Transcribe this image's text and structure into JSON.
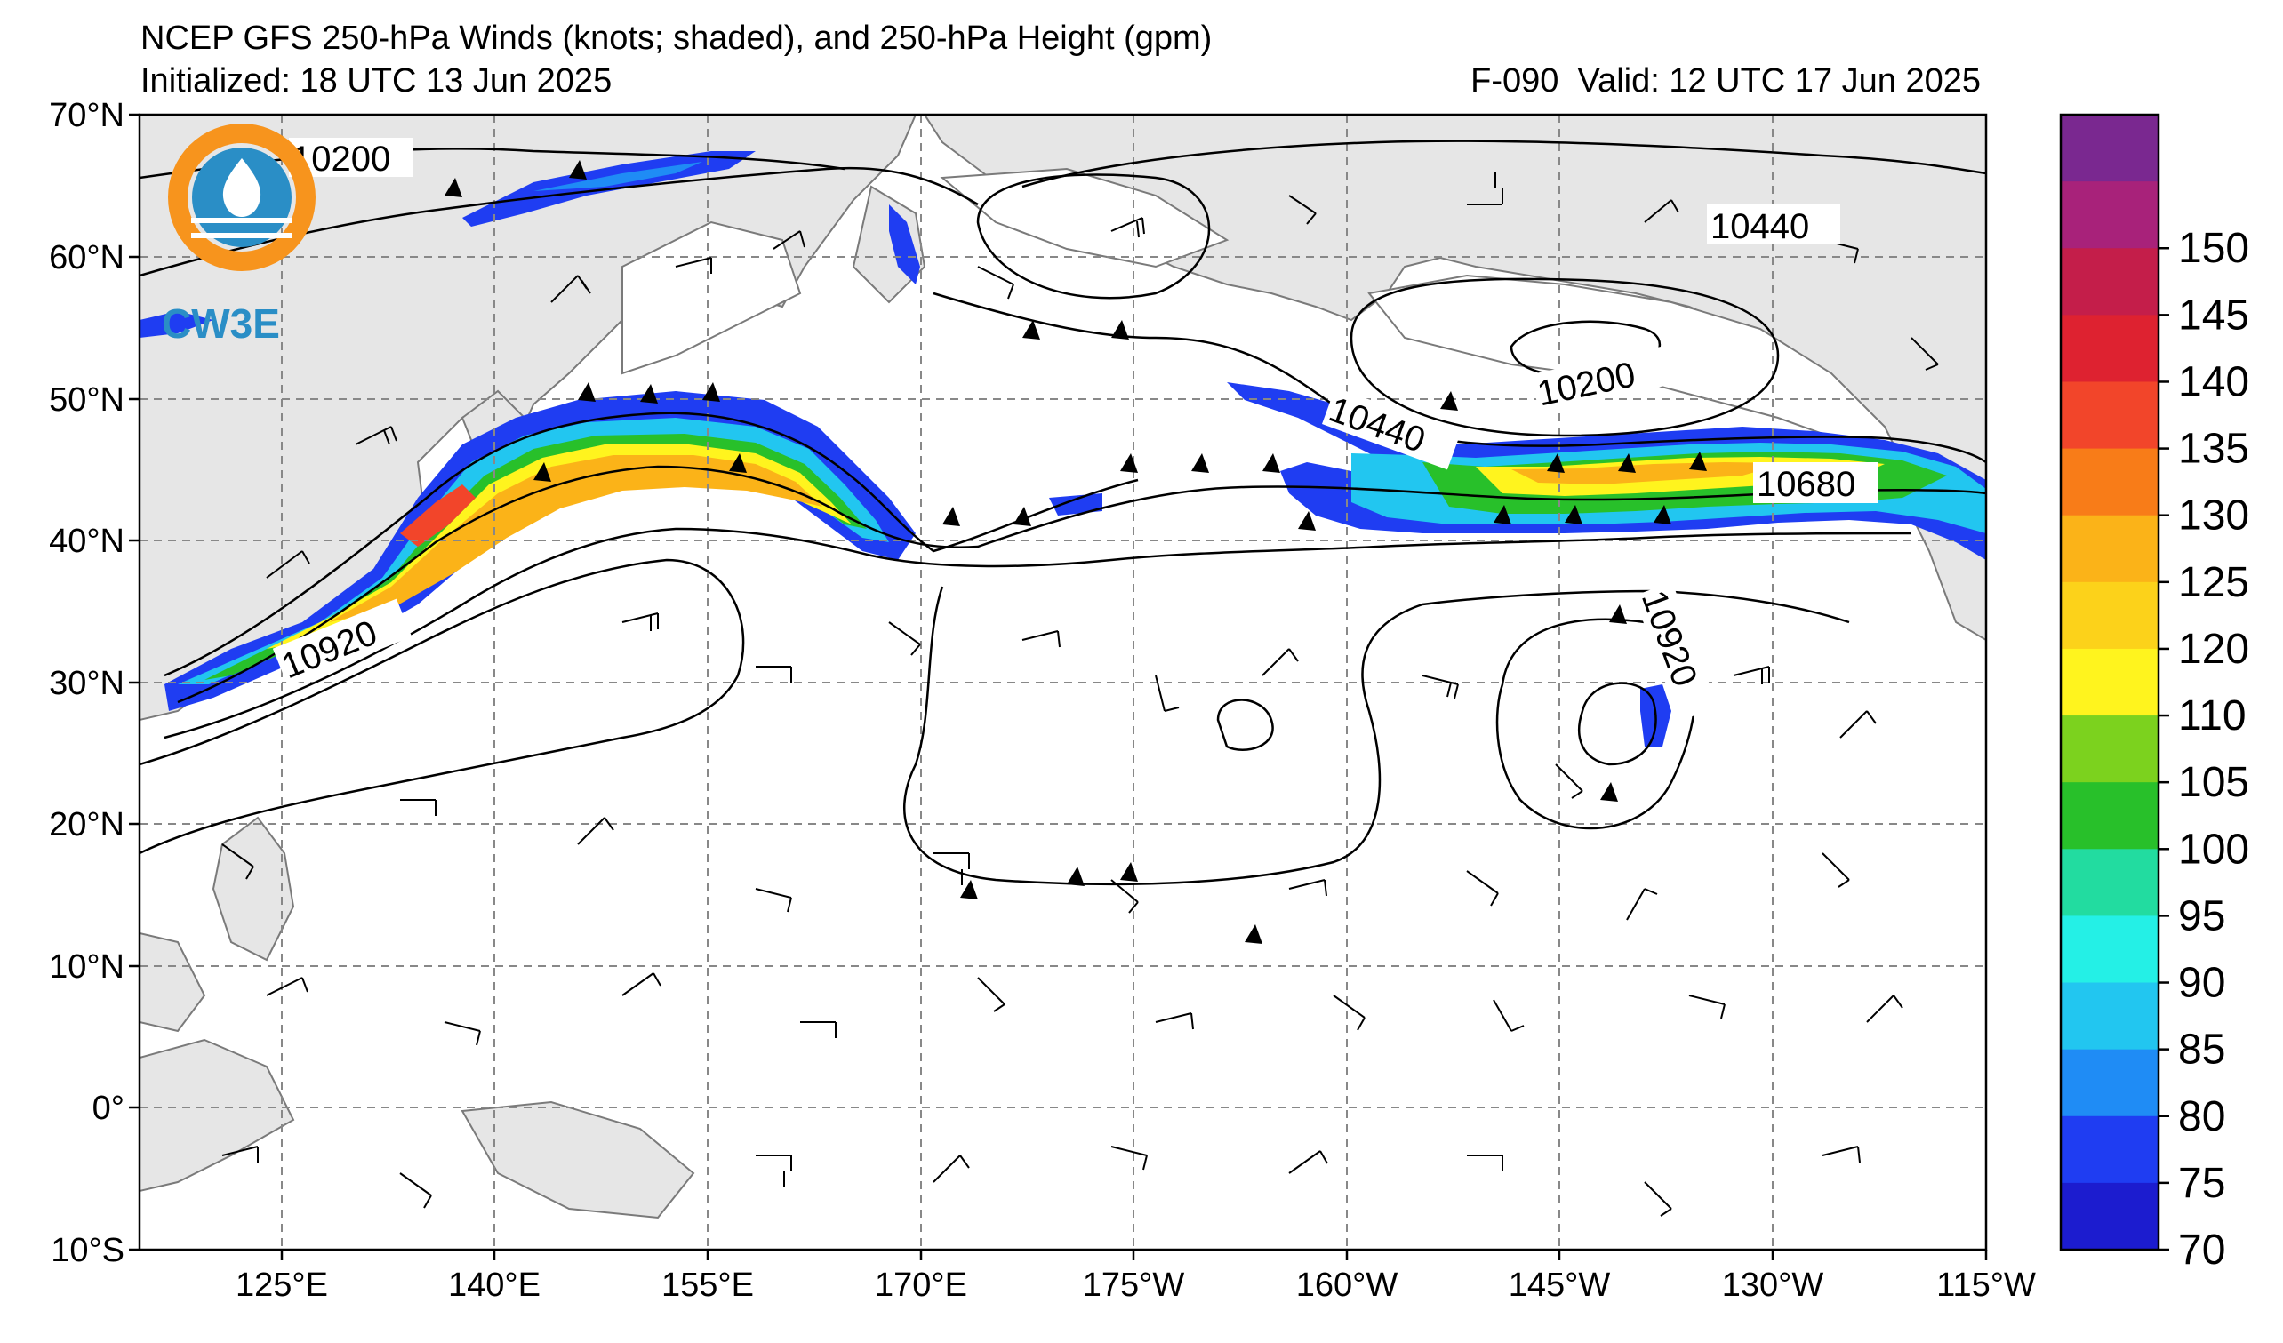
{
  "header": {
    "title": "NCEP GFS 250-hPa Winds (knots; shaded), and 250-hPa Height (gpm)",
    "initialized": "Initialized: 18 UTC 13 Jun 2025",
    "valid": "F-090  Valid: 12 UTC 17 Jun 2025"
  },
  "logo": {
    "text": "CW3E",
    "colors": {
      "ring": "#f7941d",
      "water": "#2a8ec6"
    }
  },
  "axes": {
    "lat_labels": [
      "70°N",
      "60°N",
      "50°N",
      "40°N",
      "30°N",
      "20°N",
      "10°N",
      "0°",
      "10°S"
    ],
    "lon_labels": [
      "125°E",
      "140°E",
      "155°E",
      "170°E",
      "175°W",
      "160°W",
      "145°W",
      "130°W",
      "115°W"
    ],
    "lat_range": [
      -10,
      70
    ],
    "lon_range_deg_east": [
      115,
      245
    ]
  },
  "contours": {
    "unit": "gpm",
    "labels": [
      {
        "value": "10200",
        "near": "northwest, Sea of Okhotsk"
      },
      {
        "value": "10440",
        "near": "Bering Sea / Alaska"
      },
      {
        "value": "10200",
        "near": "Gulf of Alaska low"
      },
      {
        "value": "10440",
        "near": "central North Pacific"
      },
      {
        "value": "10680",
        "near": "off US West Coast"
      },
      {
        "value": "10920",
        "near": "south of Japan"
      },
      {
        "value": "10920",
        "near": "east of Hawaii"
      }
    ]
  },
  "colorbar": {
    "ticks": [
      "70",
      "75",
      "80",
      "85",
      "90",
      "95",
      "100",
      "105",
      "110",
      "120",
      "125",
      "130",
      "135",
      "140",
      "145",
      "150"
    ],
    "colors": [
      "#1c1ccf",
      "#1f3df2",
      "#1f8cf5",
      "#22c6f0",
      "#24f0e6",
      "#22dca0",
      "#28c02a",
      "#7cd21e",
      "#fff41e",
      "#fcd21a",
      "#fbb318",
      "#f87c18",
      "#f2452a",
      "#de2230",
      "#c41e4a",
      "#a8227a",
      "#7a2890"
    ]
  }
}
